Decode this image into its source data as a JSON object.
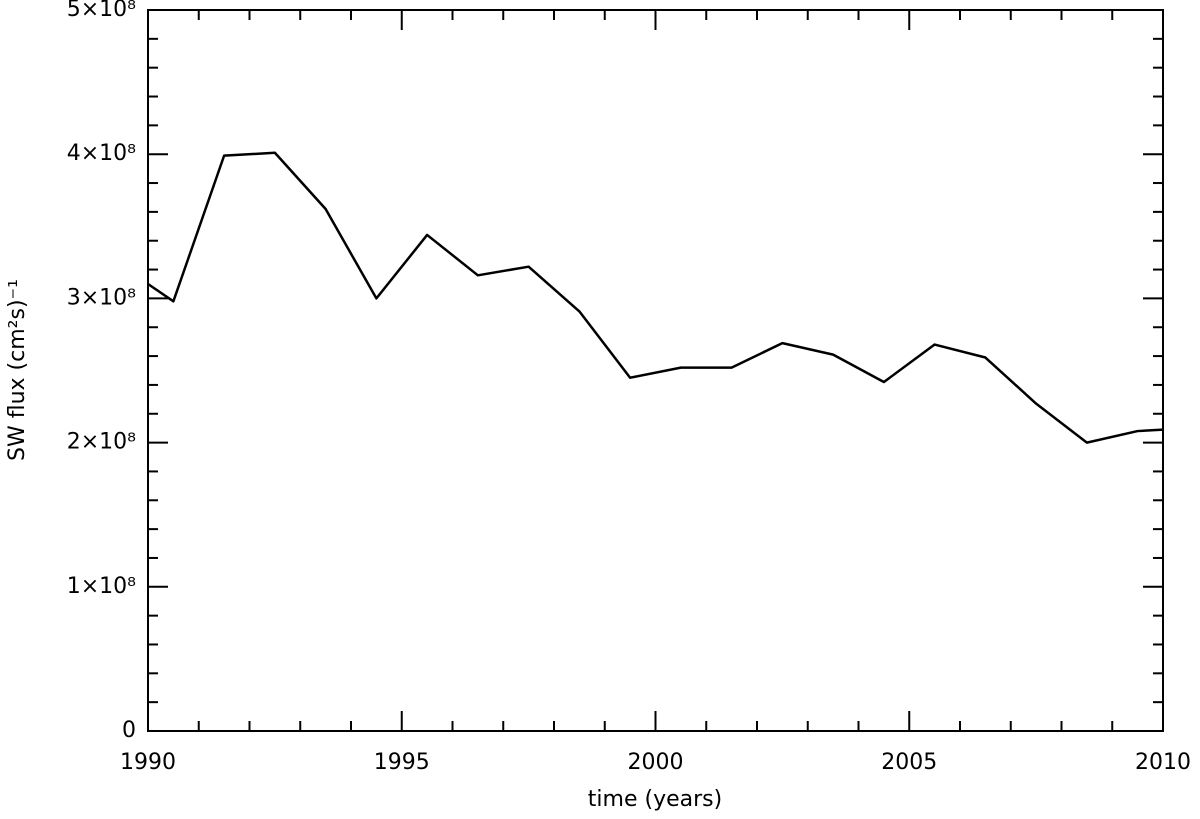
{
  "chart_data": {
    "type": "line",
    "xlabel": "time (years)",
    "ylabel": "SW flux (cm²s)⁻¹",
    "x": [
      1990,
      1990.5,
      1991.5,
      1992.5,
      1993.5,
      1994.5,
      1995.5,
      1996.5,
      1997.5,
      1998.5,
      1999.5,
      2000.5,
      2001.5,
      2002.5,
      2003.5,
      2004.5,
      2005.5,
      2006.5,
      2007.5,
      2008.5,
      2009.5,
      2010
    ],
    "series": [
      {
        "color": "#000000",
        "values": [
          310000000,
          298000000,
          399000000,
          401000000,
          362000000,
          300000000,
          344000000,
          316000000,
          322000000,
          291000000,
          245000000,
          252000000,
          252000000,
          269000000,
          261000000,
          242000000,
          268000000,
          259000000,
          227000000,
          200000000,
          208000000,
          209000000
        ]
      }
    ],
    "xlim": [
      1990,
      2010
    ],
    "xticks": [
      1990,
      1995,
      2000,
      2005,
      2010
    ],
    "ylim": [
      0,
      500000000
    ],
    "yticks": [
      0,
      {
        "value": 100000000,
        "label": "1×10⁸"
      },
      {
        "value": 200000000,
        "label": "2×10⁸"
      },
      {
        "value": 300000000,
        "label": "3×10⁸"
      },
      {
        "value": 400000000,
        "label": "4×10⁸"
      },
      {
        "value": 500000000,
        "label": "5×10⁸"
      }
    ]
  }
}
